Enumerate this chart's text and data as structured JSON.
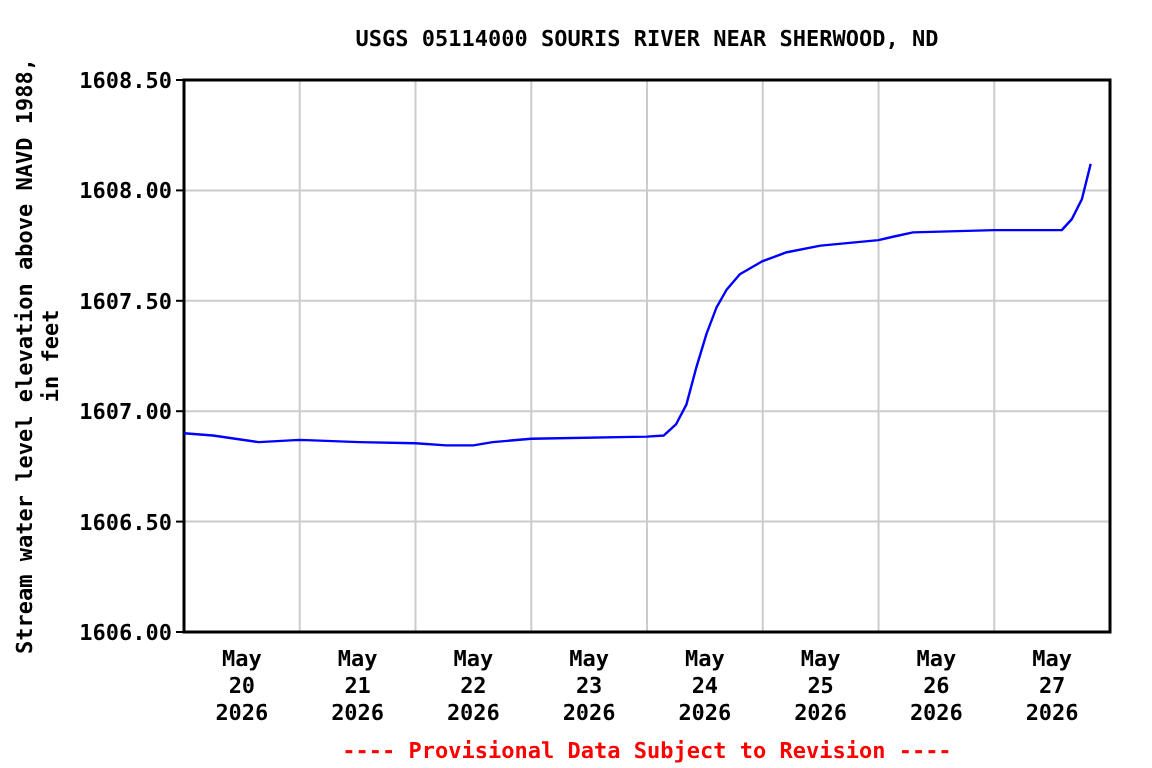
{
  "chart_data": {
    "type": "line",
    "title": "USGS 05114000 SOURIS RIVER NEAR SHERWOOD, ND",
    "ylabel": "Stream water level elevation above NAVD 1988, in feet",
    "annotations": [
      "---- Provisional Data Subject to Revision ----"
    ],
    "xlim": [
      "2026-05-20T00:00",
      "2026-05-28T00:00"
    ],
    "xticks": [
      {
        "value": "2026-05-20T12:00",
        "label": "May 20 2026"
      },
      {
        "value": "2026-05-21T00:00",
        "label": null
      },
      {
        "value": "2026-05-21T12:00",
        "label": "May 21 2026"
      },
      {
        "value": "2026-05-22T00:00",
        "label": null
      },
      {
        "value": "2026-05-22T12:00",
        "label": "May 22 2026"
      },
      {
        "value": "2026-05-23T00:00",
        "label": null
      },
      {
        "value": "2026-05-23T12:00",
        "label": "May 23 2026"
      },
      {
        "value": "2026-05-24T00:00",
        "label": null
      },
      {
        "value": "2026-05-24T12:00",
        "label": "May 24 2026"
      },
      {
        "value": "2026-05-25T00:00",
        "label": null
      },
      {
        "value": "2026-05-25T12:00",
        "label": "May 25 2026"
      },
      {
        "value": "2026-05-26T00:00",
        "label": null
      },
      {
        "value": "2026-05-26T12:00",
        "label": "May 26 2026"
      },
      {
        "value": "2026-05-27T00:00",
        "label": null
      },
      {
        "value": "2026-05-27T12:00",
        "label": "May 27 2026"
      }
    ],
    "ylim": [
      1606.0,
      1608.5
    ],
    "yticks": [
      {
        "value": 1606.0,
        "label": "1606.00"
      },
      {
        "value": 1606.5,
        "label": "1606.50"
      },
      {
        "value": 1607.0,
        "label": "1607.00"
      },
      {
        "value": 1607.5,
        "label": "1607.50"
      },
      {
        "value": 1608.0,
        "label": "1608.00"
      },
      {
        "value": 1608.5,
        "label": "1608.50"
      }
    ],
    "grid": true,
    "marker": "none",
    "line_style": "solid",
    "series": [
      {
        "color": "#0000ff",
        "x": [
          "2026-05-20T00:00",
          "2026-05-20T06:00",
          "2026-05-20T15:30",
          "2026-05-21T00:00",
          "2026-05-21T12:20",
          "2026-05-22T00:00",
          "2026-05-22T06:20",
          "2026-05-22T12:00",
          "2026-05-22T16:00",
          "2026-05-23T00:00",
          "2026-05-24T00:00",
          "2026-05-24T03:30",
          "2026-05-24T06:00",
          "2026-05-24T08:10",
          "2026-05-24T10:15",
          "2026-05-24T12:20",
          "2026-05-24T14:25",
          "2026-05-24T16:30",
          "2026-05-24T19:15",
          "2026-05-25T00:00",
          "2026-05-25T05:00",
          "2026-05-25T12:00",
          "2026-05-26T00:00",
          "2026-05-26T03:00",
          "2026-05-26T07:10",
          "2026-05-27T00:00",
          "2026-05-27T14:00",
          "2026-05-27T16:05",
          "2026-05-27T18:10",
          "2026-05-27T20:00"
        ],
        "values": [
          1606.9,
          1606.89,
          1606.86,
          1606.87,
          1606.86,
          1606.855,
          1606.845,
          1606.845,
          1606.86,
          1606.875,
          1606.885,
          1606.89,
          1606.94,
          1607.03,
          1607.2,
          1607.35,
          1607.47,
          1607.55,
          1607.62,
          1607.68,
          1607.72,
          1607.75,
          1607.775,
          1607.79,
          1607.81,
          1607.82,
          1607.82,
          1607.87,
          1607.96,
          1608.12
        ]
      }
    ]
  }
}
